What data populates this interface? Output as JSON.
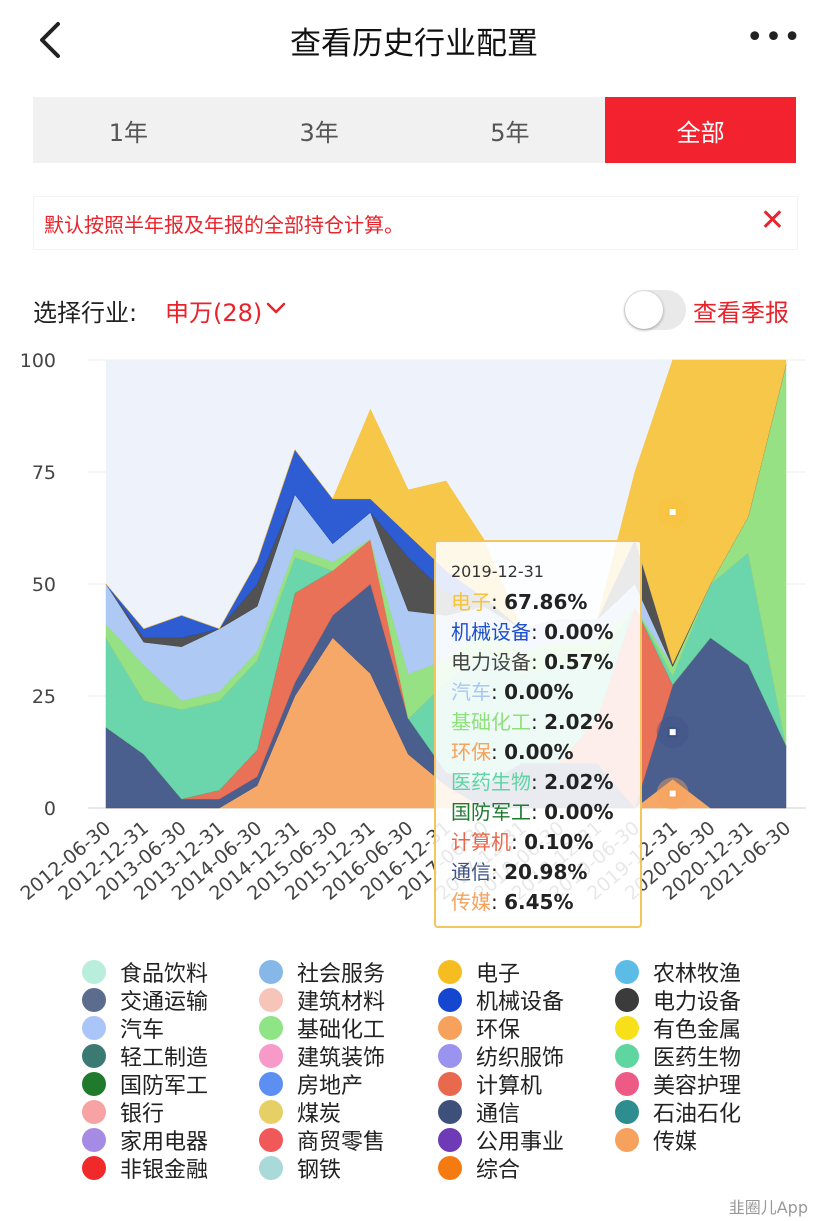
{
  "header": {
    "title": "查看历史行业配置",
    "more": "•••"
  },
  "tabs": [
    {
      "label": "1年"
    },
    {
      "label": "3年"
    },
    {
      "label": "5年"
    },
    {
      "label": "全部",
      "active": true
    }
  ],
  "notice": {
    "text": "默认按照半年报及年报的全部持仓计算。",
    "close": "✕"
  },
  "selector": {
    "label": "选择行业:",
    "value": "申万(28)",
    "season_label": "查看季报",
    "season_on": false
  },
  "tooltip": {
    "date": "2019-12-31",
    "rows": [
      {
        "name": "电子",
        "value": "67.86%",
        "color": "#f7c33b"
      },
      {
        "name": "机械设备",
        "value": "0.00%",
        "color": "#1d4fcf"
      },
      {
        "name": "电力设备",
        "value": "0.57%",
        "color": "#444444"
      },
      {
        "name": "汽车",
        "value": "0.00%",
        "color": "#a9c6f4"
      },
      {
        "name": "基础化工",
        "value": "2.02%",
        "color": "#8ee07a"
      },
      {
        "name": "环保",
        "value": "0.00%",
        "color": "#f6a25c"
      },
      {
        "name": "医药生物",
        "value": "2.02%",
        "color": "#5fd3a4"
      },
      {
        "name": "国防军工",
        "value": "0.00%",
        "color": "#1e7a30"
      },
      {
        "name": "计算机",
        "value": "0.10%",
        "color": "#e8664a"
      },
      {
        "name": "通信",
        "value": "20.98%",
        "color": "#3d5384"
      },
      {
        "name": "传媒",
        "value": "6.45%",
        "color": "#f6a25c"
      }
    ]
  },
  "chart_data": {
    "type": "area",
    "stacked": true,
    "x": [
      "2012-06-30",
      "2012-12-31",
      "2013-06-30",
      "2013-12-31",
      "2014-06-30",
      "2014-12-31",
      "2015-06-30",
      "2015-12-31",
      "2016-06-30",
      "2016-12-31",
      "2017-06-30",
      "2017-12-31",
      "2018-06-30",
      "2018-12-31",
      "2019-06-30",
      "2019-12-31",
      "2020-06-30",
      "2020-12-31",
      "2021-06-30"
    ],
    "ylim": [
      0,
      100
    ],
    "yticks": [
      0,
      25,
      50,
      75,
      100
    ],
    "grid": true,
    "highlight_x": "2019-12-31",
    "series": [
      {
        "name": "传媒",
        "color": "#f6a25c",
        "values": [
          0,
          0,
          0,
          0,
          5,
          25,
          38,
          30,
          12,
          5,
          0,
          0,
          0,
          0,
          0,
          6.45,
          0,
          0,
          0
        ]
      },
      {
        "name": "通信",
        "color": "#3d5384",
        "values": [
          18,
          12,
          2,
          2,
          2,
          3,
          5,
          20,
          8,
          3,
          5,
          10,
          10,
          10,
          0,
          20.98,
          38,
          32,
          14
        ]
      },
      {
        "name": "计算机",
        "color": "#e8664a",
        "values": [
          0,
          0,
          0,
          2,
          6,
          20,
          10,
          10,
          0,
          0,
          0,
          0,
          0,
          10,
          45,
          0.1,
          0,
          0,
          0
        ]
      },
      {
        "name": "国防军工",
        "color": "#1e7a30",
        "values": [
          0,
          0,
          0,
          0,
          0,
          0,
          0,
          0,
          0,
          0,
          0,
          0,
          0,
          0,
          0,
          0,
          0,
          0,
          0
        ]
      },
      {
        "name": "医药生物",
        "color": "#5fd3a4",
        "values": [
          20,
          12,
          20,
          20,
          20,
          8,
          0,
          0,
          0,
          20,
          30,
          20,
          22,
          12,
          0,
          2.02,
          12,
          25,
          0
        ]
      },
      {
        "name": "环保",
        "color": "#f6a25c",
        "values": [
          0,
          0,
          0,
          0,
          0,
          0,
          0,
          0,
          0,
          0,
          0,
          0,
          0,
          0,
          0,
          0,
          0,
          0,
          0
        ]
      },
      {
        "name": "基础化工",
        "color": "#8ee07a",
        "values": [
          3,
          8,
          2,
          2,
          2,
          2,
          2,
          0,
          10,
          5,
          5,
          5,
          5,
          5,
          0,
          2.02,
          0,
          8,
          85
        ]
      },
      {
        "name": "汽车",
        "color": "#a9c6f4",
        "values": [
          9,
          5,
          12,
          14,
          10,
          12,
          4,
          6,
          14,
          10,
          5,
          5,
          5,
          5,
          5,
          0,
          0,
          0,
          0
        ]
      },
      {
        "name": "电力设备",
        "color": "#444444",
        "values": [
          0,
          1,
          2,
          0,
          5,
          0,
          0,
          0,
          12,
          5,
          2,
          0,
          0,
          0,
          10,
          0.57,
          0,
          0,
          0
        ]
      },
      {
        "name": "机械设备",
        "color": "#1d4fcf",
        "values": [
          0,
          2,
          5,
          0,
          5,
          10,
          10,
          3,
          5,
          5,
          0,
          0,
          0,
          0,
          0,
          0,
          0,
          0,
          0
        ]
      },
      {
        "name": "电子",
        "color": "#f7c33b",
        "values": [
          0,
          0,
          0,
          0,
          0,
          0,
          0,
          20,
          10,
          20,
          13,
          0,
          0,
          0,
          15,
          67.86,
          50,
          35,
          1
        ]
      }
    ]
  },
  "legend": [
    {
      "label": "食品饮料",
      "color": "#b8eedb"
    },
    {
      "label": "社会服务",
      "color": "#85b8e8"
    },
    {
      "label": "电子",
      "color": "#f5bd20"
    },
    {
      "label": "农林牧渔",
      "color": "#5bbde6"
    },
    {
      "label": "交通运输",
      "color": "#5b6c8f"
    },
    {
      "label": "建筑材料",
      "color": "#f7c4ba"
    },
    {
      "label": "机械设备",
      "color": "#1546cf"
    },
    {
      "label": "电力设备",
      "color": "#3b3b3b"
    },
    {
      "label": "汽车",
      "color": "#aac6f8"
    },
    {
      "label": "基础化工",
      "color": "#8fe485"
    },
    {
      "label": "环保",
      "color": "#f6a25c"
    },
    {
      "label": "有色金属",
      "color": "#f7df1a"
    },
    {
      "label": "轻工制造",
      "color": "#3a7a72"
    },
    {
      "label": "建筑装饰",
      "color": "#f79ac8"
    },
    {
      "label": "纺织服饰",
      "color": "#9a93f0"
    },
    {
      "label": "医药生物",
      "color": "#5fd6a0"
    },
    {
      "label": "国防军工",
      "color": "#1f7a2c"
    },
    {
      "label": "房地产",
      "color": "#5b8ff2"
    },
    {
      "label": "计算机",
      "color": "#e8694e"
    },
    {
      "label": "美容护理",
      "color": "#ee5a86"
    },
    {
      "label": "银行",
      "color": "#f7a3a3"
    },
    {
      "label": "煤炭",
      "color": "#e6d066"
    },
    {
      "label": "通信",
      "color": "#3d507a"
    },
    {
      "label": "石油石化",
      "color": "#2e8d8f"
    },
    {
      "label": "家用电器",
      "color": "#a58be3"
    },
    {
      "label": "商贸零售",
      "color": "#f0585a"
    },
    {
      "label": "公用事业",
      "color": "#6e3ab5"
    },
    {
      "label": "传媒",
      "color": "#f6a25c"
    },
    {
      "label": "非银金融",
      "color": "#f02a2a"
    },
    {
      "label": "钢铁",
      "color": "#a9d9d8"
    },
    {
      "label": "综合",
      "color": "#f57a10"
    }
  ],
  "watermark": "韭圈儿App"
}
